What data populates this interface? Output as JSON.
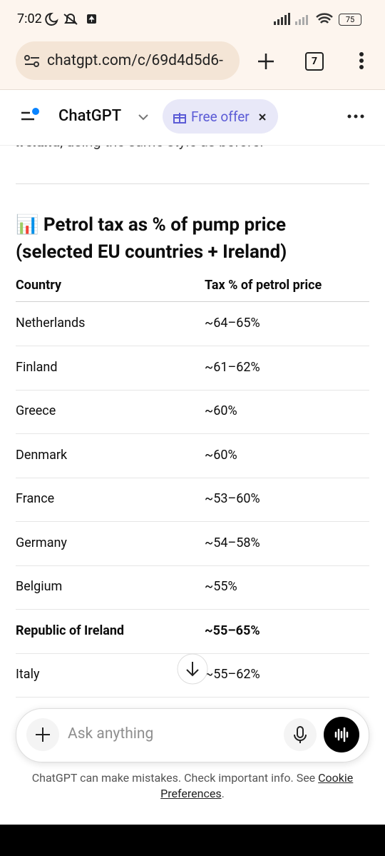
{
  "status_bar": {
    "time": "7:02",
    "battery": "75"
  },
  "browser": {
    "url": "chatgpt.com/c/69d4d5d6-",
    "tab_count": "7"
  },
  "app_header": {
    "title": "ChatGPT",
    "offer": "Free offer"
  },
  "message": {
    "intro_bold": "Ireland",
    "intro_rest": ", using the same style as before.",
    "heading": "📊 Petrol tax as % of pump price (selected EU countries + Ireland)",
    "table": {
      "columns": [
        "Country",
        "Tax % of petrol price"
      ],
      "rows": [
        {
          "cells": [
            "Netherlands",
            "~64–65%"
          ]
        },
        {
          "cells": [
            "Finland",
            "~61–62%"
          ]
        },
        {
          "cells": [
            "Greece",
            "~60%"
          ]
        },
        {
          "cells": [
            "Denmark",
            "~60%"
          ]
        },
        {
          "cells": [
            "France",
            "~53–60%"
          ]
        },
        {
          "cells": [
            "Germany",
            "~54–58%"
          ]
        },
        {
          "cells": [
            "Belgium",
            "~55%"
          ]
        },
        {
          "cells": [
            "Republic of Ireland",
            "~55–65%"
          ],
          "bold": true
        },
        {
          "cells": [
            "Italy",
            "~55–62%"
          ]
        }
      ]
    }
  },
  "composer": {
    "placeholder": "Ask anything"
  },
  "footer": {
    "disclaimer": "ChatGPT can make mistakes. Check important info. See",
    "link": "Cookie Preferences",
    "end": "."
  }
}
